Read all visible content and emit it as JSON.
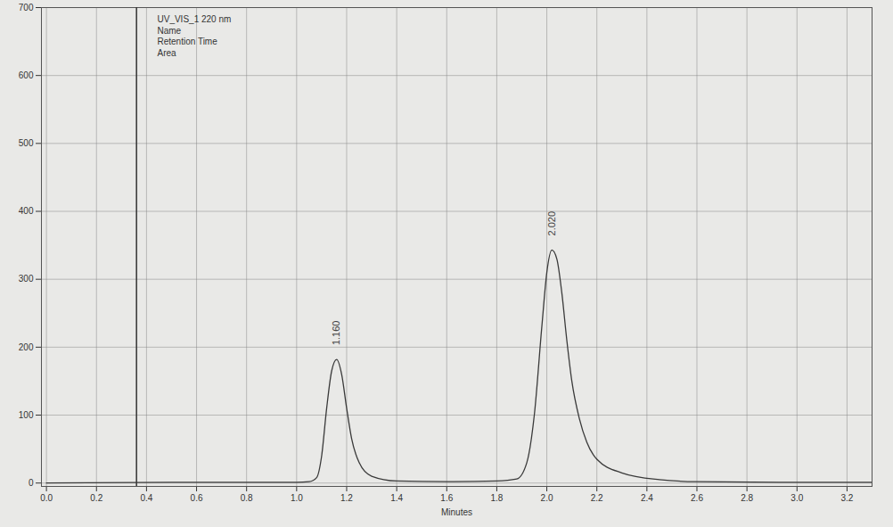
{
  "chart_data": {
    "type": "line",
    "title": "UV_VIS_1 220 nm",
    "annotations": [
      "Name",
      "Retention Time",
      "Area"
    ],
    "x_label": "Minutes",
    "x": [
      0.0,
      0.5,
      1.0,
      1.05,
      1.08,
      1.1,
      1.12,
      1.14,
      1.16,
      1.18,
      1.2,
      1.22,
      1.25,
      1.3,
      1.4,
      1.6,
      1.8,
      1.88,
      1.92,
      1.95,
      1.98,
      2.0,
      2.02,
      2.04,
      2.06,
      2.08,
      2.1,
      2.13,
      2.16,
      2.2,
      2.3,
      2.45,
      2.6,
      3.0,
      3.3
    ],
    "series": [
      {
        "name": "UV_VIS_1",
        "color": "#3a3a3a",
        "values": [
          0,
          1,
          1,
          2,
          8,
          40,
          110,
          165,
          182,
          160,
          110,
          65,
          30,
          10,
          3,
          2,
          3,
          6,
          30,
          100,
          230,
          310,
          343,
          330,
          280,
          210,
          150,
          95,
          60,
          35,
          15,
          5,
          2,
          1,
          1
        ]
      }
    ],
    "peaks": [
      {
        "x": 1.16,
        "y": 182,
        "label": "1.160"
      },
      {
        "x": 2.02,
        "y": 343,
        "label": "2.020"
      }
    ],
    "cursor_x": 0.36,
    "xlim": [
      -0.02,
      3.3
    ],
    "xticks": [
      {
        "value": 0,
        "label": "0.0"
      },
      {
        "value": 0.2,
        "label": "0.2"
      },
      {
        "value": 0.4,
        "label": "0.4"
      },
      {
        "value": 0.6,
        "label": "0.6"
      },
      {
        "value": 0.8,
        "label": "0.8"
      },
      {
        "value": 1,
        "label": "1.0"
      },
      {
        "value": 1.2,
        "label": "1.2"
      },
      {
        "value": 1.4,
        "label": "1.4"
      },
      {
        "value": 1.6,
        "label": "1.6"
      },
      {
        "value": 1.8,
        "label": "1.8"
      },
      {
        "value": 2,
        "label": "2.0"
      },
      {
        "value": 2.2,
        "label": "2.2"
      },
      {
        "value": 2.4,
        "label": "2.4"
      },
      {
        "value": 2.6,
        "label": "2.6"
      },
      {
        "value": 2.8,
        "label": "2.8"
      },
      {
        "value": 3,
        "label": "3.0"
      },
      {
        "value": 3.2,
        "label": "3.2"
      }
    ],
    "ylim": [
      -5,
      700
    ],
    "yticks": [
      0,
      100,
      200,
      300,
      400,
      500,
      600,
      700
    ],
    "grid": true
  }
}
